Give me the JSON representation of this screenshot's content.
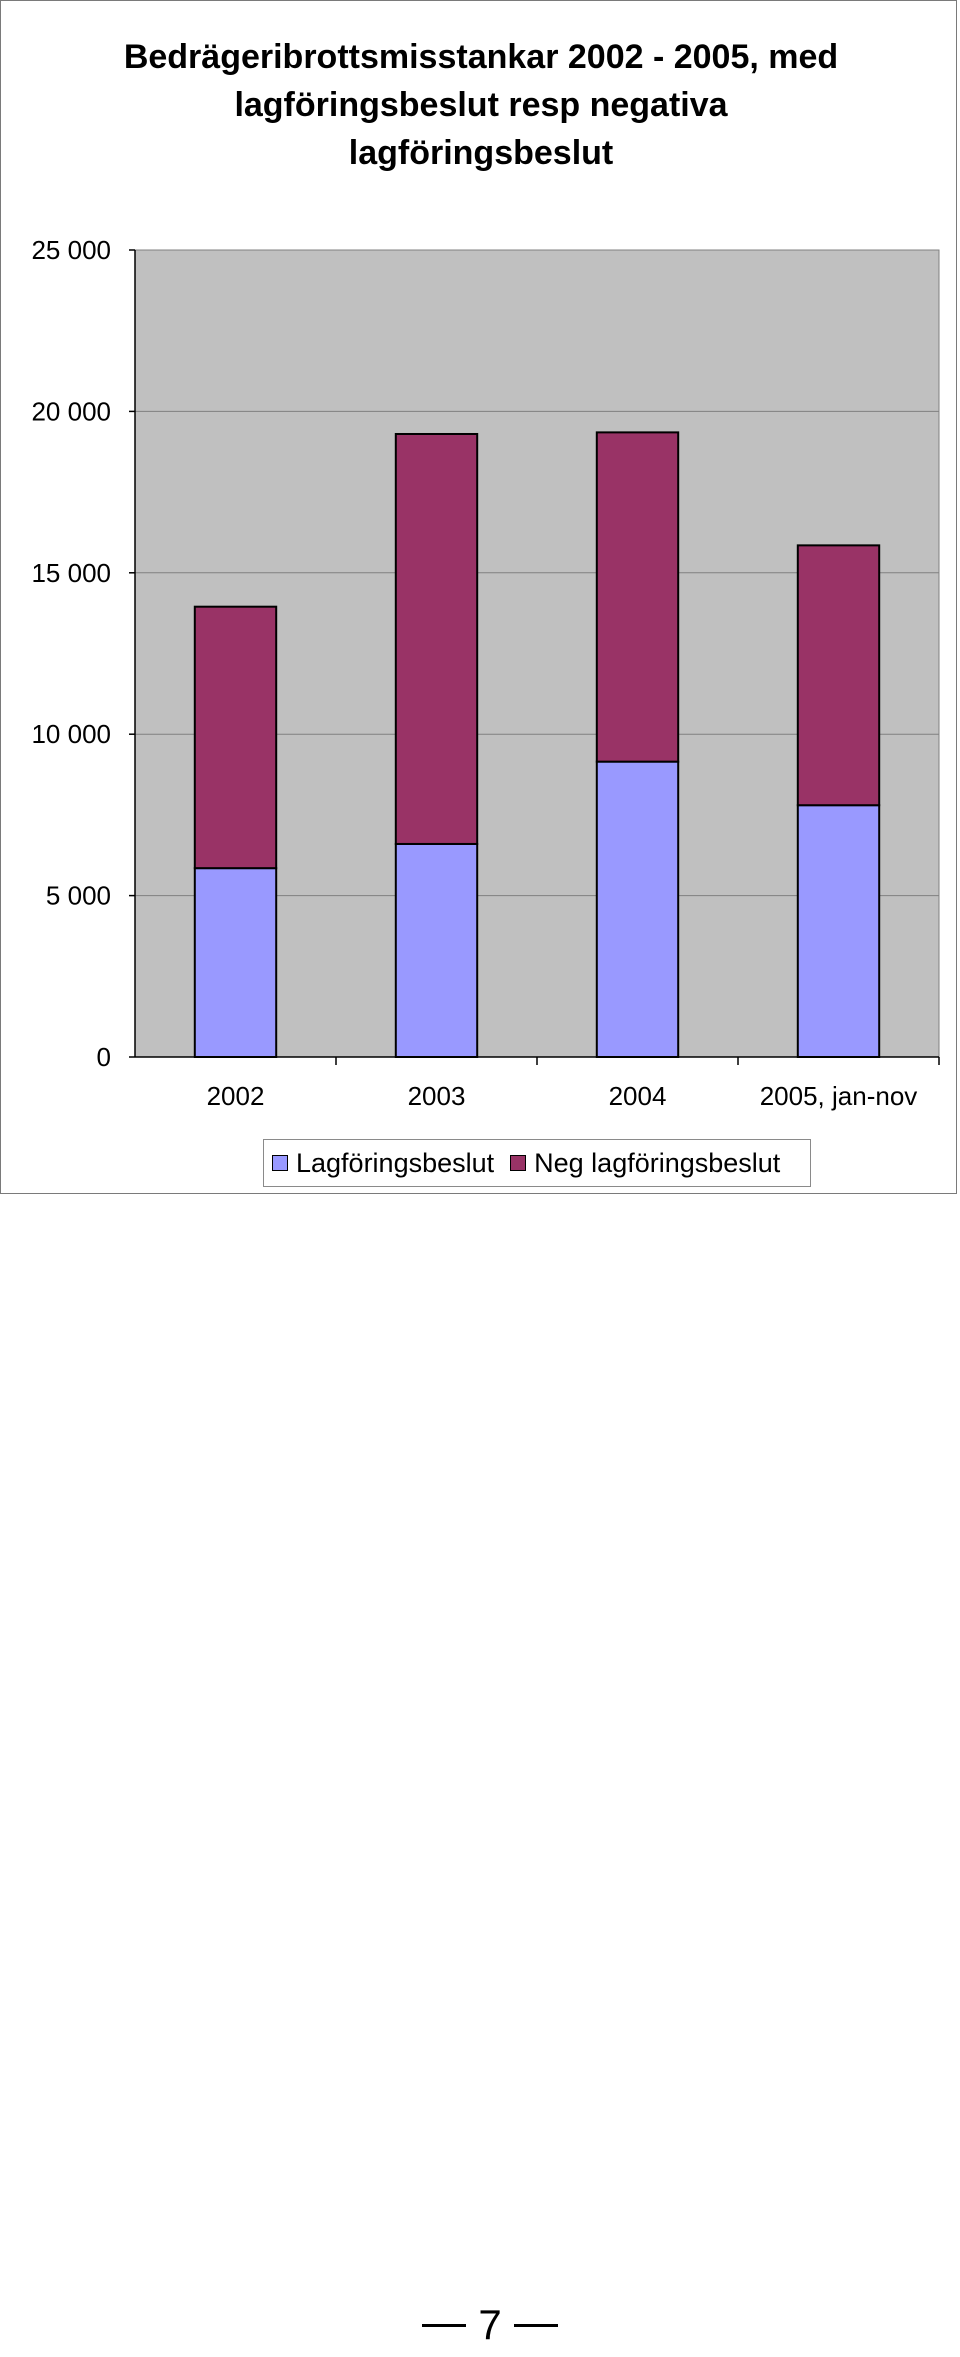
{
  "chart_data": {
    "type": "bar",
    "stacked": true,
    "title": "Bedrägeribrottsmisstankar 2002 - 2005, med lagföringsbeslut resp negativa lagföringsbeslut",
    "title_lines": [
      "Bedrägeribrottsmisstankar 2002 - 2005, med",
      "lagföringsbeslut resp negativa",
      "lagföringsbeslut"
    ],
    "xlabel": "",
    "ylabel": "",
    "categories": [
      "2002",
      "2003",
      "2004",
      "2005, jan-nov"
    ],
    "series": [
      {
        "name": "Lagföringsbeslut",
        "color": "#9999ff",
        "values": [
          5850,
          6600,
          9150,
          7800
        ]
      },
      {
        "name": "Neg lagföringsbeslut",
        "color": "#993366",
        "values": [
          8100,
          12700,
          10200,
          8050
        ]
      }
    ],
    "ylim": [
      0,
      25000
    ],
    "yticks": [
      0,
      5000,
      10000,
      15000,
      20000,
      25000
    ],
    "ytick_labels": [
      "0",
      "5 000",
      "10 000",
      "15 000",
      "20 000",
      "25 000"
    ],
    "grid": true,
    "plot_background": "#c0c0c0",
    "legend_position": "bottom"
  },
  "page": {
    "number": "7"
  }
}
